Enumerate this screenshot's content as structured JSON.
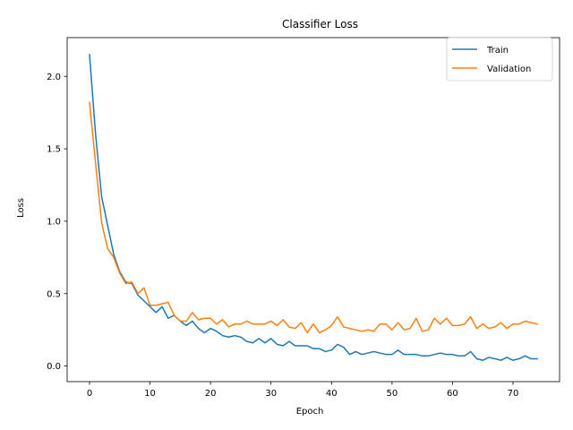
{
  "chart_data": {
    "type": "line",
    "title": "Classifier Loss",
    "xlabel": "Epoch",
    "ylabel": "Loss",
    "xlim": [
      -3.7,
      77.7
    ],
    "ylim": [
      -0.1075,
      2.2675
    ],
    "xticks": [
      0,
      10,
      20,
      30,
      40,
      50,
      60,
      70
    ],
    "yticks": [
      0.0,
      0.5,
      1.0,
      1.5,
      2.0
    ],
    "xtick_labels": [
      "0",
      "10",
      "20",
      "30",
      "40",
      "50",
      "60",
      "70"
    ],
    "ytick_labels": [
      "0.0",
      "0.5",
      "1.0",
      "1.5",
      "2.0"
    ],
    "grid": false,
    "legend_position": "top-right",
    "series": [
      {
        "name": "Train",
        "color": "#1f77b4",
        "values": [
          2.15,
          1.6,
          1.17,
          0.97,
          0.77,
          0.65,
          0.58,
          0.57,
          0.49,
          0.45,
          0.41,
          0.37,
          0.41,
          0.33,
          0.35,
          0.31,
          0.28,
          0.31,
          0.26,
          0.23,
          0.26,
          0.24,
          0.21,
          0.2,
          0.21,
          0.2,
          0.17,
          0.16,
          0.19,
          0.16,
          0.19,
          0.15,
          0.14,
          0.17,
          0.14,
          0.14,
          0.14,
          0.12,
          0.12,
          0.1,
          0.11,
          0.15,
          0.13,
          0.08,
          0.1,
          0.08,
          0.09,
          0.1,
          0.09,
          0.08,
          0.08,
          0.11,
          0.08,
          0.08,
          0.08,
          0.07,
          0.07,
          0.08,
          0.09,
          0.08,
          0.08,
          0.07,
          0.07,
          0.1,
          0.05,
          0.04,
          0.06,
          0.05,
          0.04,
          0.06,
          0.04,
          0.05,
          0.07,
          0.05,
          0.05
        ]
      },
      {
        "name": "Validation",
        "color": "#ff7f0e",
        "values": [
          1.82,
          1.4,
          0.99,
          0.81,
          0.75,
          0.64,
          0.57,
          0.58,
          0.5,
          0.54,
          0.42,
          0.42,
          0.43,
          0.44,
          0.35,
          0.31,
          0.31,
          0.37,
          0.32,
          0.33,
          0.33,
          0.29,
          0.32,
          0.27,
          0.29,
          0.29,
          0.31,
          0.29,
          0.29,
          0.29,
          0.31,
          0.28,
          0.32,
          0.27,
          0.26,
          0.3,
          0.23,
          0.29,
          0.23,
          0.25,
          0.28,
          0.34,
          0.27,
          0.26,
          0.25,
          0.24,
          0.25,
          0.24,
          0.29,
          0.29,
          0.25,
          0.3,
          0.25,
          0.26,
          0.33,
          0.24,
          0.25,
          0.33,
          0.29,
          0.33,
          0.28,
          0.28,
          0.29,
          0.34,
          0.26,
          0.29,
          0.26,
          0.27,
          0.3,
          0.26,
          0.29,
          0.29,
          0.31,
          0.3,
          0.29
        ]
      }
    ]
  }
}
